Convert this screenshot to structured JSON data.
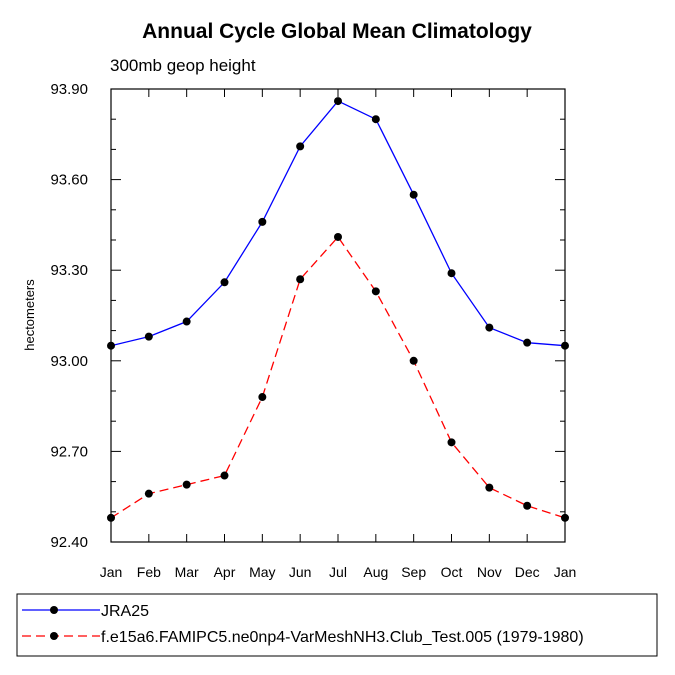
{
  "chart_data": {
    "type": "line",
    "title": "Annual Cycle Global Mean Climatology",
    "subtitle": "300mb geop height",
    "ylabel": "hectometers",
    "xlabel": "",
    "categories": [
      "Jan",
      "Feb",
      "Mar",
      "Apr",
      "May",
      "Jun",
      "Jul",
      "Aug",
      "Sep",
      "Oct",
      "Nov",
      "Dec",
      "Jan"
    ],
    "ylim": [
      92.4,
      93.9
    ],
    "yticks": [
      "92.40",
      "92.70",
      "93.00",
      "93.30",
      "93.60",
      "93.90"
    ],
    "series": [
      {
        "name": "JRA25",
        "color": "#0000ff",
        "dash": "solid",
        "values": [
          93.05,
          93.08,
          93.13,
          93.26,
          93.46,
          93.71,
          93.86,
          93.8,
          93.55,
          93.29,
          93.11,
          93.06,
          93.05
        ]
      },
      {
        "name": "f.e15a6.FAMIPC5.ne0np4-VarMeshNH3.Club_Test.005 (1979-1980)",
        "color": "#ff0000",
        "dash": "dashed",
        "values": [
          92.48,
          92.56,
          92.59,
          92.62,
          92.88,
          93.27,
          93.41,
          93.23,
          93.0,
          92.73,
          92.58,
          92.52,
          92.48
        ]
      }
    ],
    "grid": false,
    "legend_position": "bottom"
  }
}
